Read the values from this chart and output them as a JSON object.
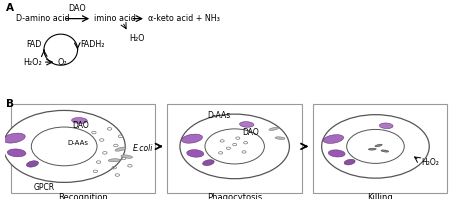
{
  "panel_a_label": "A",
  "panel_b_label": "B",
  "reaction_text": {
    "d_amino": "D-amino acid",
    "dao_label": "DAO",
    "imino": "imino acid",
    "products": "α-keto acid + NH₃",
    "fad": "FAD",
    "fadh2": "FADH₂",
    "h2o": "H₂O",
    "h2o2_left": "H₂O₂",
    "o2": "O₂"
  },
  "panel_b_labels": {
    "recognition": "Recognition",
    "phagocytosis": "Phagocytosis",
    "killing": "Killing",
    "dao": "DAO",
    "d_aas": "D-AAs",
    "d_aas_sub": "D-AAs",
    "gpcr": "GPCR",
    "ecoli": "E.coli",
    "h2o2": "H₂O₂"
  },
  "purple_mid": "#9b59b6",
  "purple_dark": "#7d3c98",
  "purple_light": "#c39bd3"
}
